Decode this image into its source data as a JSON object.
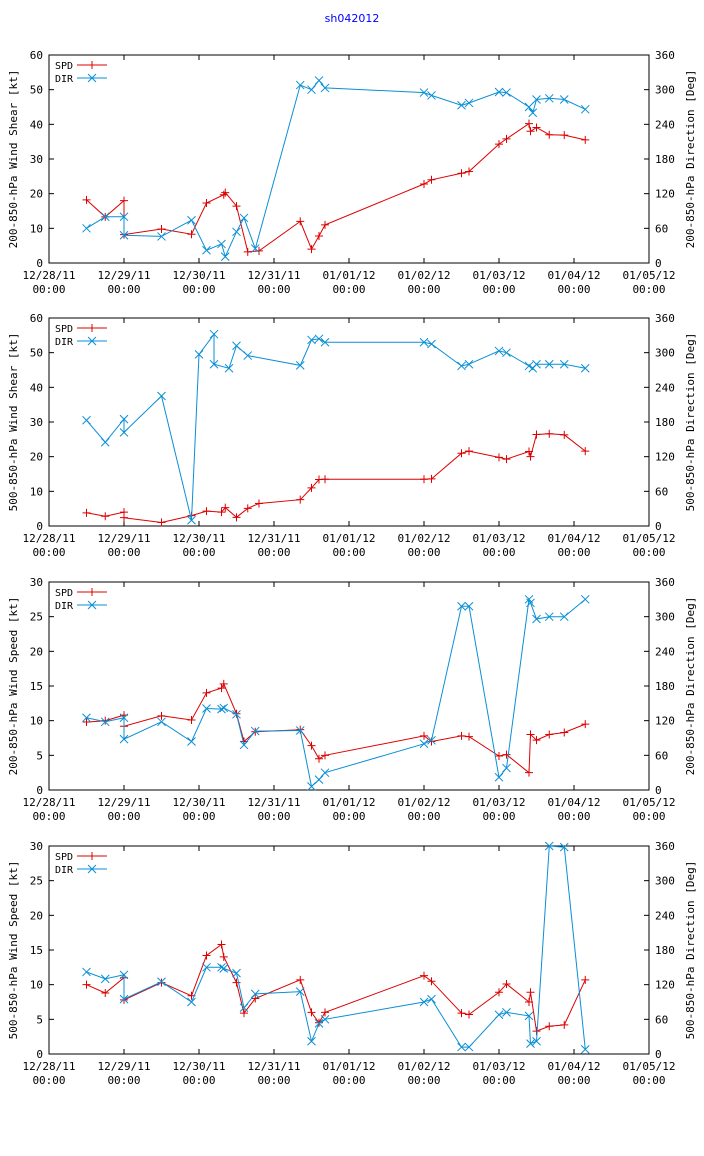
{
  "title": "sh042012",
  "colors": {
    "spd": "#dd0000",
    "dir": "#0a8fd6",
    "axis": "#000000"
  },
  "legend": {
    "spd": "SPD",
    "dir": "DIR"
  },
  "x_ticks": [
    {
      "date": "12/28/11",
      "time": "00:00"
    },
    {
      "date": "12/29/11",
      "time": "00:00"
    },
    {
      "date": "12/30/11",
      "time": "00:00"
    },
    {
      "date": "12/31/11",
      "time": "00:00"
    },
    {
      "date": "01/01/12",
      "time": "00:00"
    },
    {
      "date": "01/02/12",
      "time": "00:00"
    },
    {
      "date": "01/03/12",
      "time": "00:00"
    },
    {
      "date": "01/04/12",
      "time": "00:00"
    },
    {
      "date": "01/05/12",
      "time": "00:00"
    }
  ],
  "chart_data": [
    {
      "type": "line",
      "ylabel": "200-850-hPa Wind Shear [kt]",
      "y2label": "200-850-hPa Direction [Deg]",
      "xlim": [
        0,
        8
      ],
      "ylim": [
        0,
        60
      ],
      "y2lim": [
        0,
        360
      ],
      "yticks": [
        0,
        10,
        20,
        30,
        40,
        50,
        60
      ],
      "y2ticks": [
        0,
        60,
        120,
        180,
        240,
        300,
        360
      ],
      "series": [
        {
          "name": "SPD",
          "axis": "left",
          "x": [
            0.5,
            0.75,
            1.0,
            1.0,
            1.5,
            1.9,
            2.1,
            2.33,
            2.35,
            2.5,
            2.65,
            2.8,
            3.35,
            3.5,
            3.6,
            3.68,
            5.0,
            5.1,
            5.5,
            5.6,
            6.0,
            6.1,
            6.4,
            6.42,
            6.5,
            6.67,
            6.87,
            7.15
          ],
          "values": [
            18.2,
            13.3,
            18.0,
            8.2,
            9.8,
            8.3,
            17.3,
            19.7,
            20.3,
            16.4,
            3.2,
            3.5,
            12.0,
            4.0,
            7.8,
            11.0,
            22.8,
            24.0,
            25.9,
            26.4,
            34.3,
            35.8,
            40.2,
            38.0,
            39.1,
            37.0,
            36.9,
            35.5
          ]
        },
        {
          "name": "DIR",
          "axis": "right",
          "x": [
            0.5,
            0.75,
            1.0,
            1.0,
            1.5,
            1.9,
            2.1,
            2.3,
            2.35,
            2.5,
            2.6,
            2.75,
            3.35,
            3.5,
            3.6,
            3.68,
            5.0,
            5.1,
            5.5,
            5.6,
            6.0,
            6.1,
            6.4,
            6.45,
            6.5,
            6.67,
            6.87,
            7.15
          ],
          "values": [
            60,
            80,
            80,
            48,
            46,
            74,
            22,
            33,
            11,
            54,
            78,
            25,
            308,
            300,
            316,
            303,
            295,
            290,
            273,
            277,
            296,
            295,
            270,
            260,
            283,
            285,
            283,
            266
          ]
        }
      ]
    },
    {
      "type": "line",
      "ylabel": "500-850-hPa Wind Shear [kt]",
      "y2label": "500-850-hPa Direction [Deg]",
      "xlim": [
        0,
        8
      ],
      "ylim": [
        0,
        60
      ],
      "y2lim": [
        0,
        360
      ],
      "yticks": [
        0,
        10,
        20,
        30,
        40,
        50,
        60
      ],
      "y2ticks": [
        0,
        60,
        120,
        180,
        240,
        300,
        360
      ],
      "series": [
        {
          "name": "SPD",
          "axis": "left",
          "x": [
            0.5,
            0.75,
            1.0,
            1.0,
            1.5,
            1.9,
            2.1,
            2.3,
            2.35,
            2.5,
            2.65,
            2.8,
            3.35,
            3.5,
            3.6,
            3.68,
            5.0,
            5.1,
            5.5,
            5.6,
            6.0,
            6.1,
            6.4,
            6.42,
            6.5,
            6.67,
            6.87,
            7.15
          ],
          "values": [
            3.8,
            2.8,
            4.0,
            2.4,
            1.0,
            3.0,
            4.3,
            4.0,
            5.3,
            2.5,
            5.1,
            6.5,
            7.6,
            11.0,
            13.4,
            13.5,
            13.5,
            13.6,
            21.0,
            21.6,
            19.8,
            19.3,
            21.5,
            20.0,
            26.4,
            26.6,
            26.3,
            21.6
          ]
        },
        {
          "name": "DIR",
          "axis": "right",
          "x": [
            0.5,
            0.75,
            1.0,
            1.0,
            1.5,
            1.9,
            2.0,
            2.2,
            2.2,
            2.4,
            2.5,
            2.65,
            3.35,
            3.5,
            3.6,
            3.68,
            5.0,
            5.1,
            5.5,
            5.6,
            6.0,
            6.1,
            6.4,
            6.45,
            6.5,
            6.67,
            6.87,
            7.15
          ],
          "values": [
            183,
            145,
            185,
            162,
            225,
            10,
            297,
            332,
            280,
            273,
            312,
            295,
            278,
            322,
            324,
            318,
            318,
            315,
            277,
            280,
            303,
            300,
            277,
            273,
            280,
            280,
            280,
            273
          ]
        }
      ]
    },
    {
      "type": "line",
      "ylabel": "200-850-hPa Wind Speed [kt]",
      "y2label": "200-850-hPa Direction [Deg]",
      "xlim": [
        0,
        8
      ],
      "ylim": [
        0,
        30
      ],
      "y2lim": [
        0,
        360
      ],
      "yticks": [
        0,
        5,
        10,
        15,
        20,
        25,
        30
      ],
      "y2ticks": [
        0,
        60,
        120,
        180,
        240,
        300,
        360
      ],
      "series": [
        {
          "name": "SPD",
          "axis": "left",
          "x": [
            0.5,
            0.75,
            1.0,
            1.0,
            1.5,
            1.9,
            2.1,
            2.3,
            2.33,
            2.5,
            2.6,
            2.75,
            3.35,
            3.5,
            3.6,
            3.68,
            5.0,
            5.1,
            5.5,
            5.6,
            6.0,
            6.1,
            6.4,
            6.42,
            6.5,
            6.67,
            6.87,
            7.15
          ],
          "values": [
            9.8,
            10.0,
            10.8,
            9.2,
            10.7,
            10.1,
            14.0,
            14.7,
            15.3,
            11.0,
            7.0,
            8.4,
            8.7,
            6.4,
            4.5,
            5.0,
            7.8,
            7.0,
            7.8,
            7.7,
            4.9,
            5.1,
            2.5,
            8.0,
            7.2,
            8.0,
            8.3,
            9.5
          ]
        },
        {
          "name": "DIR",
          "axis": "right",
          "x": [
            0.5,
            0.75,
            1.0,
            1.0,
            1.5,
            1.9,
            2.1,
            2.3,
            2.33,
            2.5,
            2.6,
            2.75,
            3.35,
            3.5,
            3.6,
            3.68,
            5.0,
            5.1,
            5.5,
            5.6,
            6.0,
            6.1,
            6.4,
            6.42,
            6.5,
            6.67,
            6.87,
            7.15
          ],
          "values": [
            125,
            118,
            125,
            88,
            118,
            84,
            141,
            140,
            142,
            131,
            78,
            102,
            103,
            6,
            18,
            30,
            80,
            86,
            318,
            318,
            22,
            38,
            330,
            324,
            296,
            300,
            300,
            330
          ]
        }
      ]
    },
    {
      "type": "line",
      "ylabel": "500-850-hPa Wind Speed [kt]",
      "y2label": "500-850-hPa Direction [Deg]",
      "xlim": [
        0,
        8
      ],
      "ylim": [
        0,
        30
      ],
      "y2lim": [
        0,
        360
      ],
      "yticks": [
        0,
        5,
        10,
        15,
        20,
        25,
        30
      ],
      "y2ticks": [
        0,
        60,
        120,
        180,
        240,
        300,
        360
      ],
      "series": [
        {
          "name": "SPD",
          "axis": "left",
          "x": [
            0.5,
            0.75,
            1.0,
            1.0,
            1.5,
            1.9,
            2.1,
            2.3,
            2.33,
            2.5,
            2.6,
            2.75,
            3.35,
            3.5,
            3.6,
            3.68,
            5.0,
            5.1,
            5.5,
            5.6,
            6.0,
            6.1,
            6.4,
            6.42,
            6.5,
            6.67,
            6.87,
            7.15
          ],
          "values": [
            10.0,
            8.8,
            11.0,
            7.8,
            10.3,
            8.4,
            14.2,
            15.8,
            14.0,
            10.3,
            5.9,
            8.0,
            10.7,
            6.0,
            4.5,
            6.0,
            11.3,
            10.5,
            5.9,
            5.7,
            8.9,
            10.1,
            7.5,
            8.9,
            3.3,
            4.0,
            4.2,
            10.7
          ]
        },
        {
          "name": "DIR",
          "axis": "right",
          "x": [
            0.5,
            0.75,
            1.0,
            1.0,
            1.5,
            1.9,
            2.1,
            2.3,
            2.33,
            2.5,
            2.6,
            2.75,
            3.35,
            3.5,
            3.6,
            3.68,
            5.0,
            5.1,
            5.5,
            5.6,
            6.0,
            6.1,
            6.4,
            6.42,
            6.5,
            6.67,
            6.87,
            7.15
          ],
          "values": [
            142,
            130,
            137,
            95,
            125,
            90,
            150,
            150,
            148,
            140,
            80,
            104,
            108,
            22,
            53,
            60,
            90,
            95,
            12,
            12,
            68,
            72,
            66,
            18,
            22,
            360,
            358,
            8
          ]
        }
      ]
    }
  ]
}
